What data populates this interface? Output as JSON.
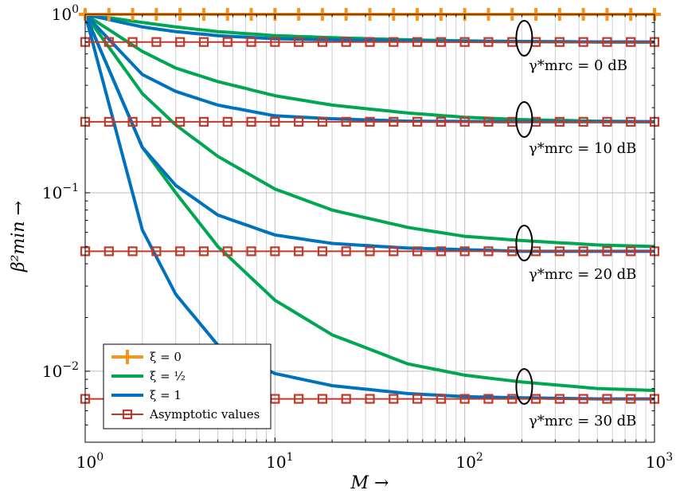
{
  "chart_data": {
    "type": "line",
    "xlabel": "M →",
    "ylabel": "β²min →",
    "x_scale": "log",
    "y_scale": "log",
    "xlim": [
      1,
      1000
    ],
    "ylim": [
      0.004,
      1.0
    ],
    "grid": true,
    "legend_position": "bottom-left",
    "x_ticks": [
      {
        "base": "10",
        "exp": "0",
        "value": 1
      },
      {
        "base": "10",
        "exp": "1",
        "value": 10
      },
      {
        "base": "10",
        "exp": "2",
        "value": 100
      },
      {
        "base": "10",
        "exp": "3",
        "value": 1000
      }
    ],
    "y_ticks": [
      {
        "base": "10",
        "exp": "0",
        "value": 1
      },
      {
        "base": "10",
        "exp": "−1",
        "value": 0.1
      },
      {
        "base": "10",
        "exp": "−2",
        "value": 0.01
      }
    ],
    "legend": [
      {
        "label": "ξ = 0",
        "series": "xi0"
      },
      {
        "label": "ξ = ½",
        "series": "xihalf"
      },
      {
        "label": "ξ = 1",
        "series": "xi1"
      },
      {
        "label": "Asymptotic values",
        "series": "asym"
      }
    ],
    "colors": {
      "xi0": "#F7941D",
      "xihalf": "#00A651",
      "xi1": "#0072BD",
      "asym": "#C0392B"
    },
    "annotations": [
      {
        "text": "γ*mrc = 0 dB",
        "x": 200,
        "y": 0.7
      },
      {
        "text": "γ*mrc = 10 dB",
        "x": 200,
        "y": 0.25
      },
      {
        "text": "γ*mrc = 20 dB",
        "x": 200,
        "y": 0.05
      },
      {
        "text": "γ*mrc = 30 dB",
        "x": 200,
        "y": 0.008
      }
    ],
    "series": [
      {
        "id": "xi0",
        "snr_db": [
          0,
          10,
          20,
          30
        ],
        "values": "constant",
        "y": 1.0,
        "marker": "plus"
      },
      {
        "id": "xihalf",
        "snr_db": 0,
        "x": [
          1,
          2,
          3,
          5,
          10,
          20,
          50,
          100,
          200,
          500,
          1000
        ],
        "y": [
          1.0,
          0.9,
          0.85,
          0.8,
          0.76,
          0.74,
          0.72,
          0.71,
          0.705,
          0.7,
          0.7
        ]
      },
      {
        "id": "xihalf",
        "snr_db": 10,
        "x": [
          1,
          2,
          3,
          5,
          10,
          20,
          50,
          100,
          200,
          500,
          1000
        ],
        "y": [
          1.0,
          0.62,
          0.5,
          0.42,
          0.35,
          0.31,
          0.28,
          0.265,
          0.257,
          0.252,
          0.25
        ]
      },
      {
        "id": "xihalf",
        "snr_db": 20,
        "x": [
          1,
          2,
          3,
          5,
          10,
          20,
          50,
          100,
          200,
          500,
          1000
        ],
        "y": [
          1.0,
          0.36,
          0.24,
          0.16,
          0.105,
          0.08,
          0.064,
          0.057,
          0.054,
          0.051,
          0.05
        ]
      },
      {
        "id": "xihalf",
        "snr_db": 30,
        "x": [
          1,
          2,
          3,
          5,
          10,
          20,
          50,
          100,
          200,
          500,
          1000
        ],
        "y": [
          1.0,
          0.18,
          0.1,
          0.05,
          0.025,
          0.016,
          0.011,
          0.0095,
          0.0087,
          0.008,
          0.0078
        ]
      },
      {
        "id": "xi1",
        "snr_db": 0,
        "x": [
          1,
          2,
          3,
          5,
          10,
          20,
          50,
          100,
          200,
          500,
          1000
        ],
        "y": [
          1.0,
          0.85,
          0.8,
          0.76,
          0.73,
          0.72,
          0.71,
          0.705,
          0.703,
          0.701,
          0.7
        ]
      },
      {
        "id": "xi1",
        "snr_db": 10,
        "x": [
          1,
          2,
          3,
          5,
          10,
          20,
          50,
          100,
          200,
          500,
          1000
        ],
        "y": [
          1.0,
          0.46,
          0.37,
          0.31,
          0.27,
          0.26,
          0.252,
          0.251,
          0.25,
          0.25,
          0.25
        ]
      },
      {
        "id": "xi1",
        "snr_db": 20,
        "x": [
          1,
          2,
          3,
          5,
          10,
          20,
          50,
          100,
          200,
          500,
          1000
        ],
        "y": [
          1.0,
          0.18,
          0.11,
          0.075,
          0.058,
          0.052,
          0.049,
          0.048,
          0.047,
          0.047,
          0.047
        ]
      },
      {
        "id": "xi1",
        "snr_db": 30,
        "x": [
          1,
          2,
          3,
          5,
          10,
          20,
          50,
          100,
          200,
          500,
          1000
        ],
        "y": [
          1.0,
          0.062,
          0.027,
          0.014,
          0.0097,
          0.0083,
          0.0075,
          0.0072,
          0.0071,
          0.007,
          0.007
        ]
      },
      {
        "id": "asym",
        "snr_db": [
          0,
          10,
          20,
          30
        ],
        "values": "constant",
        "y": [
          0.7,
          0.25,
          0.047,
          0.007
        ],
        "marker": "square"
      }
    ]
  }
}
